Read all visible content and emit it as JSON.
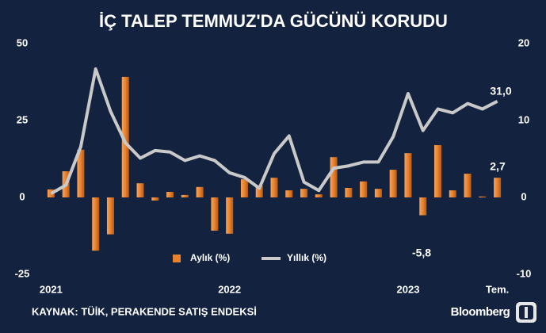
{
  "chart_data": {
    "type": "bar",
    "title": "İÇ TALEP TEMMUZ'DA GÜCÜNÜ KORUDU",
    "categories": [
      "2021",
      null,
      null,
      null,
      null,
      null,
      null,
      null,
      null,
      null,
      null,
      null,
      "2022",
      null,
      null,
      null,
      null,
      null,
      null,
      null,
      null,
      null,
      null,
      null,
      "2023",
      null,
      null,
      null,
      null,
      null,
      "Tem."
    ],
    "series": [
      {
        "name": "Aylık (%)",
        "type": "bar",
        "color": "#e8822e",
        "values": [
          2.6,
          8.5,
          15.5,
          -17.3,
          -12,
          39.2,
          4.6,
          -1,
          1.8,
          0.8,
          3.4,
          -10.8,
          -11.8,
          5.9,
          3.9,
          6.4,
          2.3,
          2.8,
          1.0,
          13.1,
          3.1,
          5.2,
          2.8,
          9.0,
          14.4,
          -5.8,
          17.0,
          2.3,
          7.7,
          0.3,
          6.4
        ]
      },
      {
        "name": "Yıllık (%)",
        "type": "line",
        "axis": "y2",
        "color": "#c9c9c9",
        "values": [
          0.5,
          1.6,
          6.6,
          16.7,
          11.2,
          7.1,
          5.1,
          6.1,
          5.9,
          4.8,
          5.4,
          4.8,
          3.2,
          2.6,
          1.2,
          5.7,
          8.0,
          2.0,
          0.9,
          3.8,
          4.1,
          4.6,
          4.6,
          7.9,
          13.5,
          8.7,
          11.5,
          11.0,
          12.2,
          11.5,
          12.5
        ]
      }
    ],
    "ylim": [
      -25,
      50
    ],
    "yticks": [
      -25,
      0,
      25,
      50
    ],
    "y2lim": [
      -10,
      20
    ],
    "y2ticks": [
      -10,
      0,
      10,
      20
    ],
    "annotations": [
      "31,0",
      "2,7",
      "-5,8"
    ],
    "source": "KAYNAK: TÜİK, PERAKENDE SATIŞ ENDEKSİ",
    "brand": "Bloomberg"
  }
}
